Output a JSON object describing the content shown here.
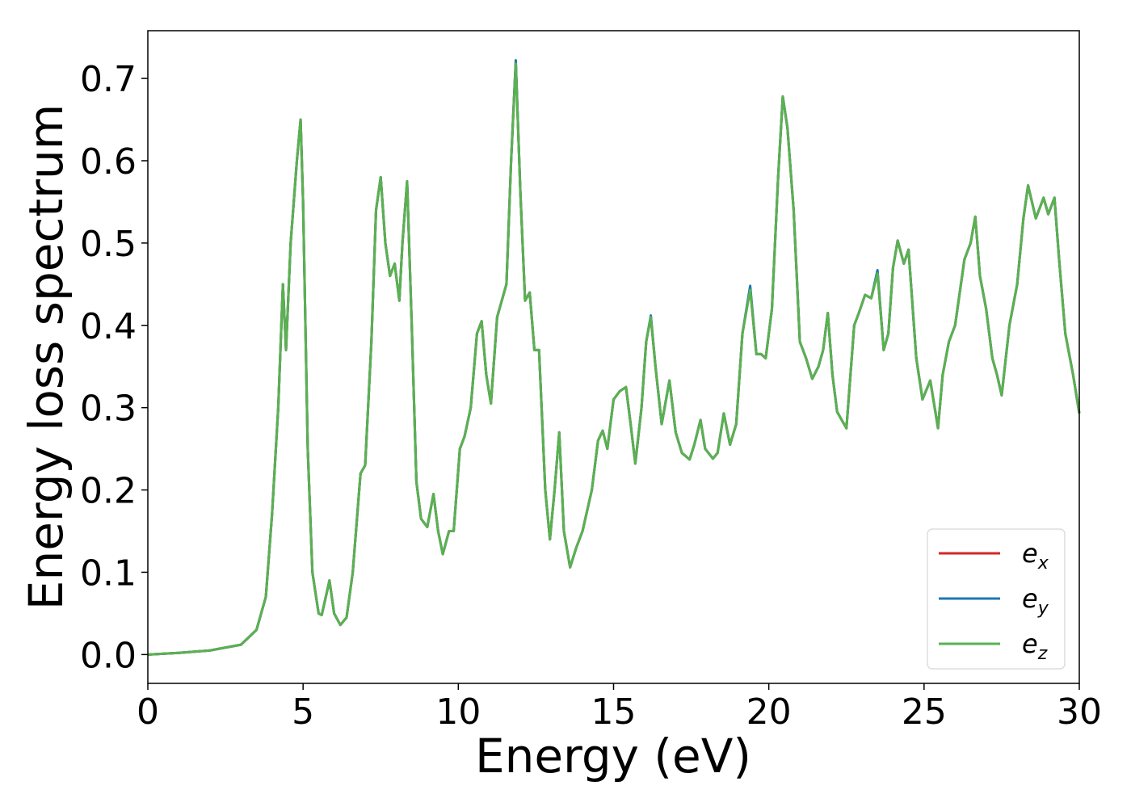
{
  "chart_data": {
    "type": "line",
    "xlabel": "Energy (eV)",
    "ylabel": "Energy loss spectrum",
    "xlim": [
      0,
      30
    ],
    "ylim": [
      -0.035,
      0.758
    ],
    "xticks": [
      0,
      5,
      10,
      15,
      20,
      25,
      30
    ],
    "yticks": [
      {
        "value": 0,
        "label": "0.0"
      },
      0.1,
      0.2,
      0.3,
      0.4,
      0.5,
      0.6,
      0.7
    ],
    "legend": "lower right",
    "x": [
      0,
      1,
      2,
      3,
      3.5,
      3.8,
      4.0,
      4.2,
      4.35,
      4.45,
      4.6,
      4.8,
      4.92,
      5.0,
      5.15,
      5.3,
      5.5,
      5.6,
      5.85,
      6.0,
      6.2,
      6.4,
      6.6,
      6.85,
      7.0,
      7.2,
      7.35,
      7.5,
      7.65,
      7.8,
      7.95,
      8.1,
      8.2,
      8.35,
      8.5,
      8.65,
      8.8,
      9.0,
      9.2,
      9.35,
      9.5,
      9.7,
      9.85,
      10.05,
      10.2,
      10.4,
      10.6,
      10.75,
      10.9,
      11.05,
      11.25,
      11.4,
      11.55,
      11.7,
      11.85,
      12.0,
      12.15,
      12.3,
      12.45,
      12.6,
      12.8,
      12.95,
      13.1,
      13.25,
      13.4,
      13.6,
      13.8,
      14.0,
      14.3,
      14.5,
      14.65,
      14.8,
      15.0,
      15.2,
      15.4,
      15.55,
      15.7,
      15.9,
      16.05,
      16.2,
      16.35,
      16.55,
      16.8,
      17.0,
      17.2,
      17.45,
      17.6,
      17.8,
      17.95,
      18.2,
      18.35,
      18.55,
      18.75,
      18.95,
      19.15,
      19.4,
      19.6,
      19.75,
      19.9,
      20.1,
      20.3,
      20.45,
      20.6,
      20.8,
      21.0,
      21.2,
      21.4,
      21.6,
      21.75,
      21.9,
      22.05,
      22.2,
      22.35,
      22.5,
      22.75,
      22.9,
      23.1,
      23.3,
      23.5,
      23.7,
      23.85,
      24.0,
      24.15,
      24.35,
      24.5,
      24.75,
      24.95,
      25.2,
      25.45,
      25.6,
      25.8,
      26.0,
      26.3,
      26.5,
      26.65,
      26.8,
      27.0,
      27.2,
      27.35,
      27.5,
      27.75,
      28.0,
      28.2,
      28.35,
      28.6,
      28.85,
      29.0,
      29.2,
      29.35,
      29.55,
      29.8,
      30.0
    ],
    "series": [
      {
        "name": "ex",
        "color": "#d62728",
        "values": [
          0,
          0.002,
          0.005,
          0.012,
          0.03,
          0.07,
          0.17,
          0.3,
          0.45,
          0.37,
          0.5,
          0.6,
          0.65,
          0.55,
          0.25,
          0.1,
          0.05,
          0.048,
          0.09,
          0.05,
          0.036,
          0.045,
          0.1,
          0.22,
          0.23,
          0.38,
          0.54,
          0.58,
          0.5,
          0.46,
          0.475,
          0.43,
          0.5,
          0.575,
          0.4,
          0.21,
          0.165,
          0.155,
          0.195,
          0.15,
          0.122,
          0.15,
          0.15,
          0.25,
          0.265,
          0.3,
          0.39,
          0.405,
          0.34,
          0.305,
          0.41,
          0.43,
          0.45,
          0.6,
          0.72,
          0.56,
          0.43,
          0.44,
          0.37,
          0.37,
          0.2,
          0.14,
          0.2,
          0.27,
          0.15,
          0.106,
          0.13,
          0.15,
          0.2,
          0.26,
          0.272,
          0.25,
          0.31,
          0.32,
          0.325,
          0.28,
          0.232,
          0.3,
          0.38,
          0.41,
          0.35,
          0.28,
          0.333,
          0.27,
          0.245,
          0.237,
          0.255,
          0.285,
          0.25,
          0.238,
          0.245,
          0.293,
          0.255,
          0.28,
          0.39,
          0.445,
          0.365,
          0.365,
          0.36,
          0.42,
          0.58,
          0.678,
          0.64,
          0.54,
          0.38,
          0.36,
          0.335,
          0.35,
          0.37,
          0.415,
          0.34,
          0.295,
          0.285,
          0.275,
          0.4,
          0.415,
          0.437,
          0.433,
          0.465,
          0.37,
          0.39,
          0.47,
          0.503,
          0.475,
          0.492,
          0.36,
          0.31,
          0.333,
          0.275,
          0.34,
          0.38,
          0.4,
          0.48,
          0.5,
          0.532,
          0.46,
          0.42,
          0.36,
          0.34,
          0.315,
          0.4,
          0.45,
          0.53,
          0.57,
          0.53,
          0.555,
          0.535,
          0.555,
          0.48,
          0.39,
          0.34,
          0.293
        ]
      },
      {
        "name": "ey",
        "color": "#1f77b4",
        "values": [
          0,
          0.002,
          0.005,
          0.012,
          0.03,
          0.07,
          0.17,
          0.3,
          0.45,
          0.37,
          0.5,
          0.6,
          0.65,
          0.55,
          0.25,
          0.1,
          0.05,
          0.048,
          0.09,
          0.05,
          0.036,
          0.045,
          0.1,
          0.22,
          0.23,
          0.38,
          0.54,
          0.58,
          0.5,
          0.46,
          0.475,
          0.43,
          0.5,
          0.575,
          0.4,
          0.21,
          0.165,
          0.155,
          0.195,
          0.15,
          0.122,
          0.15,
          0.15,
          0.25,
          0.265,
          0.3,
          0.39,
          0.405,
          0.34,
          0.305,
          0.41,
          0.43,
          0.45,
          0.6,
          0.722,
          0.56,
          0.43,
          0.44,
          0.37,
          0.37,
          0.2,
          0.14,
          0.2,
          0.27,
          0.15,
          0.106,
          0.13,
          0.15,
          0.2,
          0.26,
          0.272,
          0.25,
          0.31,
          0.32,
          0.325,
          0.28,
          0.232,
          0.3,
          0.38,
          0.412,
          0.35,
          0.28,
          0.333,
          0.27,
          0.245,
          0.237,
          0.255,
          0.285,
          0.25,
          0.238,
          0.245,
          0.293,
          0.255,
          0.28,
          0.39,
          0.448,
          0.365,
          0.365,
          0.36,
          0.42,
          0.58,
          0.678,
          0.64,
          0.54,
          0.38,
          0.36,
          0.335,
          0.35,
          0.37,
          0.415,
          0.34,
          0.295,
          0.285,
          0.275,
          0.4,
          0.415,
          0.437,
          0.433,
          0.467,
          0.37,
          0.39,
          0.47,
          0.503,
          0.475,
          0.492,
          0.36,
          0.31,
          0.333,
          0.275,
          0.34,
          0.38,
          0.4,
          0.48,
          0.5,
          0.532,
          0.46,
          0.42,
          0.36,
          0.34,
          0.315,
          0.4,
          0.45,
          0.53,
          0.57,
          0.53,
          0.555,
          0.535,
          0.555,
          0.48,
          0.39,
          0.34,
          0.293
        ]
      },
      {
        "name": "ez",
        "color": "#5ab150",
        "values": [
          0,
          0.002,
          0.005,
          0.012,
          0.03,
          0.07,
          0.17,
          0.3,
          0.45,
          0.37,
          0.5,
          0.6,
          0.65,
          0.55,
          0.25,
          0.1,
          0.05,
          0.048,
          0.09,
          0.05,
          0.036,
          0.045,
          0.1,
          0.22,
          0.23,
          0.38,
          0.54,
          0.58,
          0.5,
          0.46,
          0.475,
          0.43,
          0.5,
          0.575,
          0.4,
          0.21,
          0.165,
          0.155,
          0.195,
          0.15,
          0.122,
          0.15,
          0.15,
          0.25,
          0.265,
          0.3,
          0.39,
          0.405,
          0.34,
          0.305,
          0.41,
          0.43,
          0.45,
          0.6,
          0.718,
          0.56,
          0.43,
          0.44,
          0.37,
          0.37,
          0.2,
          0.14,
          0.2,
          0.27,
          0.15,
          0.106,
          0.13,
          0.15,
          0.2,
          0.26,
          0.272,
          0.25,
          0.31,
          0.32,
          0.325,
          0.28,
          0.232,
          0.3,
          0.38,
          0.41,
          0.35,
          0.28,
          0.333,
          0.27,
          0.245,
          0.237,
          0.255,
          0.285,
          0.25,
          0.238,
          0.245,
          0.293,
          0.255,
          0.28,
          0.39,
          0.443,
          0.365,
          0.365,
          0.36,
          0.42,
          0.58,
          0.678,
          0.64,
          0.54,
          0.38,
          0.36,
          0.335,
          0.35,
          0.37,
          0.415,
          0.34,
          0.295,
          0.285,
          0.275,
          0.4,
          0.415,
          0.437,
          0.433,
          0.463,
          0.37,
          0.39,
          0.47,
          0.503,
          0.475,
          0.492,
          0.36,
          0.31,
          0.333,
          0.275,
          0.34,
          0.38,
          0.4,
          0.48,
          0.5,
          0.532,
          0.46,
          0.42,
          0.36,
          0.34,
          0.315,
          0.4,
          0.45,
          0.53,
          0.57,
          0.53,
          0.555,
          0.535,
          0.555,
          0.48,
          0.39,
          0.34,
          0.293
        ]
      }
    ]
  }
}
